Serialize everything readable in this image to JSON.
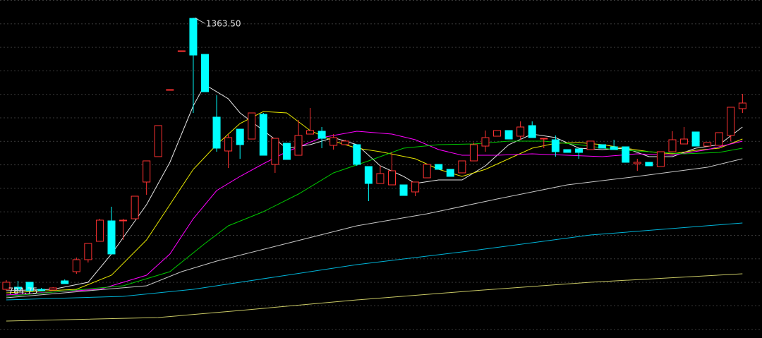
{
  "chart_data": {
    "type": "candlestick",
    "up_color": "#ff3232",
    "down_color": "#00ffff",
    "xlim": [
      -0.54,
      64.67
    ],
    "ylim": [
      686.3,
      1400.8
    ],
    "open": [
      789.2,
      793.7,
      804.2,
      789.2,
      787.8,
      807.1,
      826.5,
      851.9,
      890.7,
      933.9,
      933.9,
      938.4,
      1016.0,
      1069.7,
      1210.0,
      1292.0,
      1362.0,
      1285.9,
      1153.2,
      1081.6,
      1127.8,
      1106.9,
      1159.2,
      1053.3,
      1098.0,
      1072.6,
      1117.4,
      1123.4,
      1093.5,
      1095.0,
      1095.0,
      1048.8,
      1013.0,
      1010.0,
      1010.0,
      995.1,
      1024.9,
      1053.3,
      1042.8,
      1035.4,
      1060.7,
      1092.0,
      1112.9,
      1124.9,
      1112.9,
      1135.3,
      1107.0,
      1105.4,
      1084.6,
      1086.1,
      1084.6,
      1095.0,
      1090.5,
      1090.5,
      1054.8,
      1057.7,
      1048.8,
      1080.1,
      1096.5,
      1121.9,
      1092.0,
      1093.5,
      1114.4,
      1171.1
    ],
    "high": [
      808.6,
      807.1,
      804.2,
      792.2,
      793.7,
      810.1,
      856.4,
      886.2,
      938.4,
      963.8,
      938.4,
      986.1,
      1060.7,
      1135.3,
      1211.4,
      1293.4,
      1363.5,
      1285.9,
      1199.4,
      1117.4,
      1127.8,
      1162.1,
      1162.1,
      1108.4,
      1098.0,
      1147.2,
      1172.6,
      1132.3,
      1117.4,
      1105.4,
      1095.0,
      1048.8,
      1050.3,
      1080.1,
      1010.0,
      1016.0,
      1053.3,
      1053.3,
      1042.8,
      1060.7,
      1099.5,
      1124.9,
      1124.9,
      1124.9,
      1144.2,
      1144.2,
      1108.4,
      1114.4,
      1084.6,
      1086.1,
      1102.5,
      1095.0,
      1105.4,
      1090.5,
      1065.2,
      1057.7,
      1080.1,
      1123.4,
      1132.3,
      1121.9,
      1099.5,
      1120.4,
      1174.1,
      1202.4
    ],
    "low": [
      786.3,
      784.75,
      786.3,
      786.3,
      787.8,
      801.2,
      822.0,
      845.9,
      890.7,
      863.9,
      893.7,
      938.4,
      989.1,
      1069.7,
      1210.0,
      1292.0,
      1162.1,
      1206.9,
      1080.1,
      1045.8,
      1065.2,
      1106.9,
      1072.6,
      1035.4,
      1063.7,
      1072.6,
      1117.4,
      1087.6,
      1084.6,
      1095.0,
      1050.3,
      975.7,
      1013.0,
      1010.0,
      987.6,
      986.1,
      1024.9,
      1042.8,
      1027.9,
      1035.4,
      1060.7,
      1080.1,
      1112.9,
      1106.9,
      1105.4,
      1109.9,
      1087.6,
      1069.7,
      1078.6,
      1065.2,
      1084.6,
      1087.6,
      1084.6,
      1057.7,
      1039.8,
      1050.3,
      1048.8,
      1080.1,
      1096.5,
      1092.0,
      1092.0,
      1093.5,
      1102.5,
      1162.1
    ],
    "close": [
      804.2,
      789.2,
      786.3,
      786.3,
      792.2,
      801.2,
      851.9,
      886.2,
      935.4,
      863.9,
      935.4,
      986.1,
      1060.7,
      1135.3,
      1211.4,
      1293.4,
      1284.4,
      1206.9,
      1087.6,
      1109.9,
      1095.0,
      1162.1,
      1072.6,
      1108.4,
      1063.7,
      1114.4,
      1124.9,
      1108.4,
      1109.9,
      1102.5,
      1053.3,
      1013.0,
      1033.9,
      1039.8,
      987.6,
      1016.0,
      1053.3,
      1042.8,
      1027.9,
      1060.7,
      1095.0,
      1109.9,
      1124.9,
      1106.9,
      1132.3,
      1109.9,
      1108.4,
      1080.1,
      1078.6,
      1078.6,
      1102.5,
      1087.6,
      1084.6,
      1057.7,
      1057.7,
      1050.3,
      1080.1,
      1105.4,
      1106.9,
      1092.0,
      1099.5,
      1120.4,
      1174.1,
      1183.0
    ],
    "lines": [
      {
        "color": "#e6e6e6",
        "x": [
          0,
          4,
          7,
          9,
          12,
          14,
          16,
          17,
          19,
          20,
          22,
          24,
          26,
          28,
          30,
          32,
          34,
          35,
          37,
          39,
          41,
          43,
          45,
          47,
          49,
          51,
          53,
          55,
          57,
          59,
          61,
          63
        ],
        "values": [
          786.3,
          789.2,
          804.2,
          863.8,
          968.2,
          1057.7,
          1177.1,
          1221.8,
          1192.0,
          1162.1,
          1124.9,
          1087.6,
          1095.0,
          1109.9,
          1095.0,
          1050.3,
          1027.9,
          1013.0,
          1020.4,
          1020.4,
          1050.3,
          1095.0,
          1117.4,
          1109.9,
          1087.6,
          1084.6,
          1087.6,
          1069.7,
          1069.7,
          1087.6,
          1095.0,
          1132.3
        ]
      },
      {
        "color": "#e6e600",
        "x": [
          0,
          6,
          9,
          12,
          14,
          16,
          18,
          20,
          22,
          24,
          26,
          28,
          30,
          32,
          35,
          37,
          39,
          41,
          43,
          45,
          47,
          49,
          51,
          53,
          55,
          57,
          59,
          61,
          63
        ],
        "values": [
          781.8,
          789.2,
          819.1,
          893.7,
          968.2,
          1042.8,
          1095.0,
          1139.8,
          1165.1,
          1162.1,
          1124.9,
          1102.5,
          1087.6,
          1080.1,
          1065.2,
          1042.8,
          1027.9,
          1042.8,
          1065.2,
          1087.6,
          1098.0,
          1099.5,
          1095.0,
          1087.6,
          1080.1,
          1075.6,
          1083.1,
          1087.6,
          1107.0
        ]
      },
      {
        "color": "#ff00ff",
        "x": [
          0,
          8,
          12,
          14,
          16,
          18,
          20,
          22,
          24,
          27,
          30,
          33,
          35,
          37,
          39,
          42,
          45,
          48,
          51,
          54,
          57,
          60,
          63
        ],
        "values": [
          777.3,
          789.2,
          819.1,
          863.8,
          938.4,
          998.1,
          1027.9,
          1054.7,
          1080.1,
          1109.9,
          1123.4,
          1117.4,
          1105.5,
          1084.6,
          1072.6,
          1072.6,
          1075.6,
          1072.6,
          1069.7,
          1075.6,
          1072.6,
          1084.6,
          1102.5
        ]
      },
      {
        "color": "#00c800",
        "x": [
          0,
          10,
          14,
          17,
          19,
          22,
          25,
          28,
          31,
          34,
          37,
          40,
          43,
          46,
          49,
          52,
          55,
          58,
          61,
          63
        ],
        "values": [
          774.3,
          796.7,
          826.5,
          886.2,
          923.5,
          953.3,
          990.6,
          1035.4,
          1060.7,
          1087.6,
          1095.0,
          1096.5,
          1102.5,
          1102.5,
          1095.0,
          1084.6,
          1080.1,
          1075.6,
          1078.6,
          1087.6
        ]
      },
      {
        "color": "#c8c8c8",
        "x": [
          0,
          12,
          15,
          18,
          24,
          30,
          36,
          42,
          48,
          54,
          60,
          63
        ],
        "values": [
          771.3,
          796.7,
          826.5,
          848.9,
          886.2,
          923.5,
          948.8,
          980.2,
          1010.0,
          1027.9,
          1047.3,
          1065.2
        ]
      },
      {
        "color": "#00b4d8",
        "x": [
          0,
          10,
          16,
          20,
          30,
          40,
          50,
          63
        ],
        "values": [
          766.9,
          774.3,
          789.2,
          804.2,
          841.4,
          871.3,
          904.1,
          929.5
        ]
      },
      {
        "color": "#c8c864",
        "x": [
          0,
          13,
          20,
          30,
          40,
          50,
          63
        ],
        "values": [
          722.1,
          729.6,
          744.5,
          766.9,
          786.3,
          804.2,
          822.1
        ]
      }
    ],
    "annotations": [
      {
        "text": "1363.50",
        "value": 1363.5
      },
      {
        "text": "784.75",
        "value": 784.75
      }
    ]
  }
}
